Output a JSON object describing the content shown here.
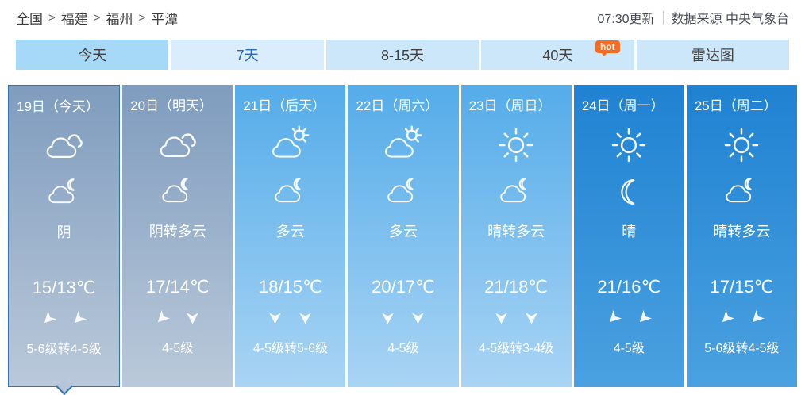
{
  "breadcrumb": {
    "separator": ">",
    "items": [
      "全国",
      "福建",
      "福州",
      "平潭"
    ]
  },
  "header": {
    "update_time": "07:30更新",
    "source": "数据来源 中央气象台"
  },
  "tabs": [
    {
      "name": "tab-today",
      "label": "今天",
      "variant": "shaded"
    },
    {
      "name": "tab-7days",
      "label": "7天",
      "variant": "selected"
    },
    {
      "name": "tab-8-15days",
      "label": "8-15天",
      "variant": "default"
    },
    {
      "name": "tab-40days",
      "label": "40天",
      "variant": "default",
      "badge": "hot"
    },
    {
      "name": "tab-radar",
      "label": "雷达图",
      "variant": "default"
    }
  ],
  "forecast": {
    "days": [
      {
        "date": "19日（今天）",
        "day_icon": "overcast-clouds-icon",
        "night_icon": "cloud-moon-icon",
        "weather": "阴",
        "temp": "15/13℃",
        "arrow_points": [
          "down-left",
          "down-left"
        ],
        "wind_level": "5-6级转4-5级",
        "theme": "gray",
        "selected": true
      },
      {
        "date": "20日（明天）",
        "day_icon": "overcast-clouds-icon",
        "night_icon": "cloud-moon-icon",
        "weather": "阴转多云",
        "temp": "17/14℃",
        "arrow_points": [
          "down-left",
          "down"
        ],
        "wind_level": "4-5级",
        "theme": "gray",
        "selected": false
      },
      {
        "date": "21日（后天）",
        "day_icon": "sun-cloud-icon",
        "night_icon": "cloud-moon-icon",
        "weather": "多云",
        "temp": "18/15℃",
        "arrow_points": [
          "down",
          "down"
        ],
        "wind_level": "4-5级转5-6级",
        "theme": "light",
        "selected": false
      },
      {
        "date": "22日（周六）",
        "day_icon": "sun-cloud-icon",
        "night_icon": "cloud-moon-icon",
        "weather": "多云",
        "temp": "20/17℃",
        "arrow_points": [
          "down",
          "down"
        ],
        "wind_level": "4-5级",
        "theme": "light",
        "selected": false
      },
      {
        "date": "23日（周日）",
        "day_icon": "sun-icon",
        "night_icon": "cloud-moon-icon",
        "weather": "晴转多云",
        "temp": "21/18℃",
        "arrow_points": [
          "down",
          "down"
        ],
        "wind_level": "4-5级转3-4级",
        "theme": "light",
        "selected": false
      },
      {
        "date": "24日（周一）",
        "day_icon": "sun-icon",
        "night_icon": "moon-icon",
        "weather": "晴",
        "temp": "21/16℃",
        "arrow_points": [
          "down-left",
          "down-left"
        ],
        "wind_level": "4-5级",
        "theme": "deep",
        "selected": false
      },
      {
        "date": "25日（周二）",
        "day_icon": "sun-icon",
        "night_icon": "cloud-moon-icon",
        "weather": "晴转多云",
        "temp": "17/15℃",
        "arrow_points": [
          "down-left",
          "down-left"
        ],
        "wind_level": "5-6级转4-5级",
        "theme": "deep",
        "selected": false
      }
    ]
  },
  "colors": {
    "tab_default_bg": "#cde7fa",
    "tab_shaded_bg": "#a6d8f7",
    "tab_selected_bg": "#d9edfc",
    "tab_selected_text": "#2a65be",
    "hot_badge_bg": "#f86c21",
    "selected_day_border": "#2e74b8",
    "col_gray_top": "#7f9cbe",
    "col_gray_bottom": "#bac9da",
    "col_light_top": "#54ace9",
    "col_light_bottom": "#a9d4f4",
    "col_deep_top": "#1f82d2",
    "col_deep_bottom": "#4ba1e0"
  }
}
